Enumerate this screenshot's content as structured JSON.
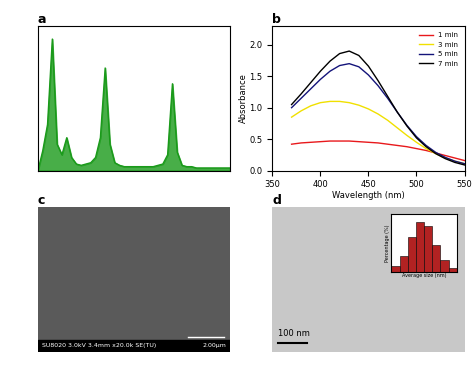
{
  "chart_data": [
    {
      "type": "line",
      "title": "a",
      "x": [
        0,
        0.25,
        0.5,
        0.75,
        1.0,
        1.25,
        1.5,
        1.75,
        2.0,
        2.25,
        2.5,
        2.75,
        3.0,
        3.25,
        3.5,
        3.75,
        4.0,
        4.25,
        4.5,
        4.75,
        5.0,
        5.25,
        5.5,
        5.75,
        6.0,
        6.25,
        6.5,
        6.75,
        7.0,
        7.25,
        7.5,
        7.75,
        8.0,
        8.25,
        8.5,
        8.75,
        9.0,
        9.25,
        9.5,
        9.75,
        10.0
      ],
      "series": [
        {
          "color": "#1a9a1a",
          "values": [
            0,
            0.15,
            0.35,
            1.0,
            0.2,
            0.12,
            0.25,
            0.1,
            0.05,
            0.04,
            0.05,
            0.06,
            0.1,
            0.25,
            0.78,
            0.2,
            0.06,
            0.04,
            0.03,
            0.03,
            0.03,
            0.03,
            0.03,
            0.03,
            0.03,
            0.04,
            0.05,
            0.12,
            0.66,
            0.14,
            0.04,
            0.03,
            0.03,
            0.02,
            0.02,
            0.02,
            0.02,
            0.02,
            0.02,
            0.02,
            0.02
          ]
        }
      ],
      "xlim": [
        0,
        10
      ],
      "ylim": [
        0,
        1.1
      ],
      "tick_labels": false
    },
    {
      "type": "line",
      "title": "b",
      "x_label": "Wavelength (nm)",
      "y_label": "Absorbance",
      "x": [
        370,
        380,
        390,
        400,
        410,
        420,
        430,
        440,
        450,
        460,
        470,
        480,
        490,
        500,
        510,
        520,
        530,
        540,
        550
      ],
      "series": [
        {
          "name": "1 min",
          "color": "#e8191c",
          "values": [
            0.42,
            0.44,
            0.45,
            0.46,
            0.47,
            0.47,
            0.47,
            0.46,
            0.45,
            0.44,
            0.42,
            0.4,
            0.38,
            0.35,
            0.32,
            0.28,
            0.24,
            0.2,
            0.16
          ]
        },
        {
          "name": "3 min",
          "color": "#f0e000",
          "values": [
            0.85,
            0.95,
            1.03,
            1.08,
            1.1,
            1.1,
            1.08,
            1.04,
            0.98,
            0.9,
            0.8,
            0.68,
            0.56,
            0.45,
            0.35,
            0.27,
            0.2,
            0.15,
            0.11
          ]
        },
        {
          "name": "5 min",
          "color": "#14147a",
          "values": [
            1.0,
            1.15,
            1.3,
            1.45,
            1.58,
            1.67,
            1.7,
            1.65,
            1.52,
            1.35,
            1.15,
            0.93,
            0.72,
            0.54,
            0.4,
            0.29,
            0.21,
            0.15,
            0.11
          ]
        },
        {
          "name": "7 min",
          "color": "#000000",
          "values": [
            1.05,
            1.22,
            1.4,
            1.58,
            1.74,
            1.86,
            1.9,
            1.83,
            1.66,
            1.43,
            1.18,
            0.93,
            0.71,
            0.52,
            0.38,
            0.27,
            0.19,
            0.13,
            0.09
          ]
        }
      ],
      "xlim": [
        350,
        550
      ],
      "xticks": [
        350,
        400,
        450,
        500,
        550
      ],
      "ylim": [
        0,
        2.3
      ],
      "yticks": [
        {
          "value": 0,
          "label": "0.0"
        },
        0.5,
        {
          "value": 1,
          "label": "1.0"
        },
        1.5,
        {
          "value": 2,
          "label": "2.0"
        }
      ],
      "legend": "upper right"
    },
    {
      "type": "image",
      "title": "c",
      "color": "#5a5a5a",
      "annotations": [
        "SU8020 3.0kV 3.4mm x20.0k SE(TU)",
        "2.00μm"
      ]
    },
    {
      "type": "image",
      "title": "d",
      "color": "#c8c8c8",
      "annotations": [
        "100 nm"
      ],
      "inset": {
        "type": "bar",
        "x_label": "Average size (nm)",
        "y_label": "Percentage (%)",
        "bins": [
          0,
          5,
          10,
          15,
          20,
          25,
          30,
          35,
          40
        ],
        "values": [
          3,
          8,
          18,
          26,
          24,
          14,
          6,
          2
        ],
        "color": "#b22222",
        "xlim": [
          0,
          40
        ],
        "ylim": [
          0,
          30
        ],
        "tick_labels": false
      }
    }
  ]
}
